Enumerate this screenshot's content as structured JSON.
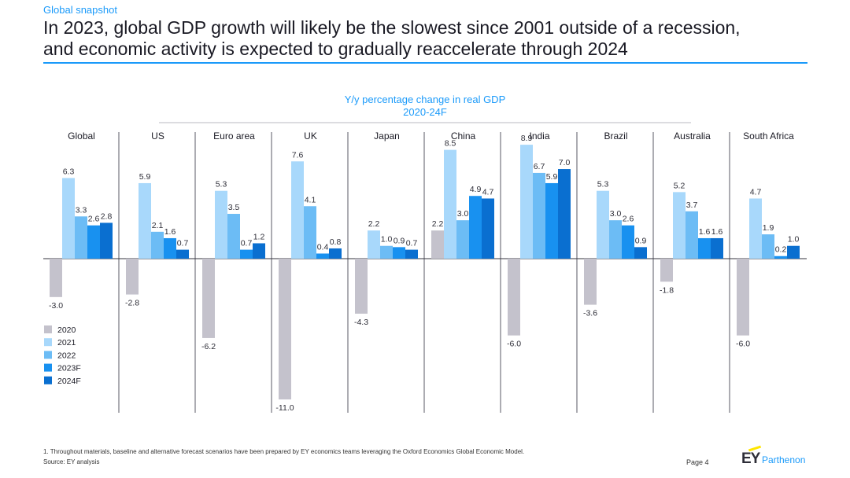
{
  "header": {
    "kicker": "Global snapshot",
    "title_line1": "In 2023, global GDP growth will likely be the slowest since 2001 outside of a recession,",
    "title_line2": "and economic activity is expected to gradually reaccelerate through 2024"
  },
  "chart_data": {
    "type": "bar",
    "title": "Y/y percentage change in real GDP",
    "subtitle": "2020-24F",
    "categories": [
      "Global",
      "US",
      "Euro area",
      "UK",
      "Japan",
      "China",
      "India",
      "Brazil",
      "Australia",
      "South Africa"
    ],
    "series": [
      {
        "name": "2020",
        "color": "#c4c2cc",
        "values": [
          -3.0,
          -2.8,
          -6.2,
          -11.0,
          -4.3,
          2.2,
          -6.0,
          -3.6,
          -1.8,
          -6.0
        ]
      },
      {
        "name": "2021",
        "color": "#a8d8fb",
        "values": [
          6.3,
          5.9,
          5.3,
          7.6,
          2.2,
          8.5,
          8.9,
          5.3,
          5.2,
          4.7
        ]
      },
      {
        "name": "2022",
        "color": "#6cbcf5",
        "values": [
          3.3,
          2.1,
          3.5,
          4.1,
          1.0,
          3.0,
          6.7,
          3.0,
          3.7,
          1.9
        ]
      },
      {
        "name": "2023F",
        "color": "#1891f0",
        "values": [
          2.6,
          1.6,
          0.7,
          0.4,
          0.9,
          4.9,
          5.9,
          2.6,
          1.6,
          0.2
        ]
      },
      {
        "name": "2024F",
        "color": "#0a6fd0",
        "values": [
          2.8,
          0.7,
          1.2,
          0.8,
          0.7,
          4.7,
          7.0,
          0.9,
          1.6,
          1.0
        ]
      }
    ],
    "ylim": [
      -11.5,
      9.5
    ],
    "grid": false,
    "legend": "bottom-left"
  },
  "footer": {
    "footnote": "1. Throughout materials, baseline and alternative forecast scenarios have been prepared by EY economics teams leveraging the Oxford Economics Global Economic Model.",
    "source": "Source: EY analysis",
    "page": "Page 4",
    "brand_mark": "EY",
    "brand_name": "Parthenon"
  }
}
